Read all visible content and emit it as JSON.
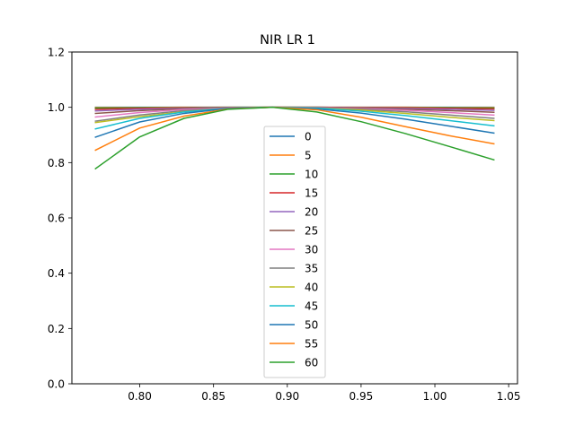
{
  "chart_data": {
    "type": "line",
    "title": "NIR LR 1",
    "xlabel": "",
    "ylabel": "",
    "xlim": [
      0.754,
      1.056
    ],
    "ylim": [
      0.0,
      1.2
    ],
    "xticks": [
      "0.80",
      "0.85",
      "0.90",
      "0.95",
      "1.00",
      "1.05"
    ],
    "yticks": [
      "0.0",
      "0.2",
      "0.4",
      "0.6",
      "0.8",
      "1.0",
      "1.2"
    ],
    "grid": false,
    "legend_position": "lower center",
    "x": [
      0.77,
      0.8,
      0.83,
      0.86,
      0.89,
      0.92,
      0.95,
      0.98,
      1.01,
      1.04
    ],
    "series": [
      {
        "name": "0",
        "color": "#1f77b4",
        "values": [
          1.0,
          1.0,
          1.0,
          1.0,
          1.0,
          1.0,
          1.0,
          1.0,
          1.0,
          1.0
        ]
      },
      {
        "name": "5",
        "color": "#ff7f0e",
        "values": [
          0.999,
          0.999,
          1.0,
          1.0,
          1.0,
          1.0,
          1.0,
          1.0,
          0.999,
          0.999
        ]
      },
      {
        "name": "10",
        "color": "#2ca02c",
        "values": [
          0.997,
          0.998,
          0.999,
          1.0,
          1.0,
          1.0,
          0.999,
          0.999,
          0.998,
          0.997
        ]
      },
      {
        "name": "15",
        "color": "#d62728",
        "values": [
          0.993,
          0.996,
          0.998,
          0.999,
          1.0,
          1.0,
          0.999,
          0.998,
          0.996,
          0.994
        ]
      },
      {
        "name": "20",
        "color": "#9467bd",
        "values": [
          0.987,
          0.993,
          0.997,
          0.999,
          1.0,
          0.999,
          0.998,
          0.996,
          0.993,
          0.989
        ]
      },
      {
        "name": "25",
        "color": "#8c564b",
        "values": [
          0.978,
          0.988,
          0.995,
          0.999,
          1.0,
          0.999,
          0.997,
          0.993,
          0.988,
          0.982
        ]
      },
      {
        "name": "30",
        "color": "#e377c2",
        "values": [
          0.965,
          0.981,
          0.992,
          0.998,
          1.0,
          0.999,
          0.995,
          0.989,
          0.981,
          0.972
        ]
      },
      {
        "name": "35",
        "color": "#7f7f7f",
        "values": [
          0.95,
          0.972,
          0.988,
          0.997,
          1.0,
          0.998,
          0.993,
          0.984,
          0.972,
          0.96
        ]
      },
      {
        "name": "40",
        "color": "#bcbd22",
        "values": [
          0.945,
          0.966,
          0.984,
          0.996,
          1.0,
          0.997,
          0.99,
          0.978,
          0.964,
          0.952
        ]
      },
      {
        "name": "45",
        "color": "#17becf",
        "values": [
          0.922,
          0.96,
          0.983,
          0.996,
          1.0,
          0.997,
          0.986,
          0.97,
          0.952,
          0.933
        ]
      },
      {
        "name": "50",
        "color": "#1f77b4",
        "values": [
          0.892,
          0.947,
          0.978,
          0.996,
          1.0,
          0.994,
          0.979,
          0.957,
          0.932,
          0.907
        ]
      },
      {
        "name": "55",
        "color": "#ff7f0e",
        "values": [
          0.845,
          0.925,
          0.968,
          0.994,
          1.0,
          0.991,
          0.964,
          0.93,
          0.897,
          0.868
        ]
      },
      {
        "name": "60",
        "color": "#2ca02c",
        "values": [
          0.778,
          0.893,
          0.96,
          0.993,
          1.0,
          0.983,
          0.948,
          0.905,
          0.858,
          0.81
        ]
      }
    ]
  }
}
